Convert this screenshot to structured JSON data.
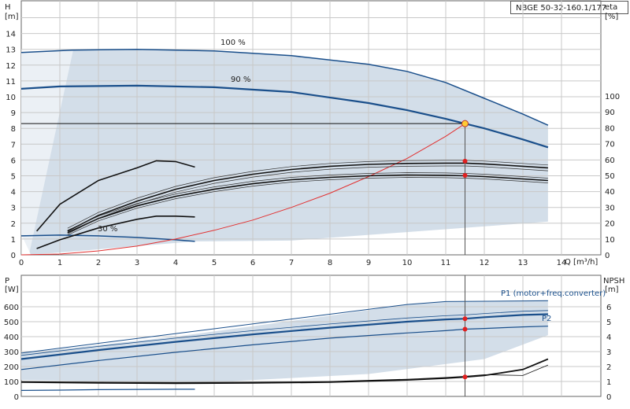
{
  "model": "NBGE 50-32-160.1/177",
  "chart_data": [
    {
      "type": "line",
      "panel": "head-efficiency",
      "x_label": "Q [m³/h]",
      "y_label_left": "H",
      "y_unit_left": "[m]",
      "y_label_right": "eta",
      "y_unit_right": "[%]",
      "xlim": [
        0,
        14
      ],
      "ylim_left": [
        0,
        15
      ],
      "ylim_right": [
        0,
        100
      ],
      "x_ticks": [
        "0",
        "1",
        "2",
        "3",
        "4",
        "5",
        "6",
        "7",
        "8",
        "9",
        "10",
        "11",
        "12",
        "13",
        "14"
      ],
      "y_ticks_left": [
        "0",
        "1",
        "2",
        "3",
        "4",
        "5",
        "6",
        "7",
        "8",
        "9",
        "10",
        "11",
        "12",
        "13",
        "14"
      ],
      "y_ticks_right": [
        "0",
        "10",
        "20",
        "30",
        "40",
        "50",
        "60",
        "70",
        "80",
        "90",
        "100"
      ],
      "operating_point": {
        "q": 11.5,
        "h": 8.3,
        "eta": 59,
        "eta_right": 50
      },
      "series": [
        {
          "name": "100 %",
          "kind": "head",
          "x": [
            0,
            1.3,
            3,
            5,
            7,
            9,
            10,
            11,
            12,
            13,
            13.65
          ],
          "y": [
            12.8,
            12.95,
            13.0,
            12.9,
            12.6,
            12.05,
            11.6,
            10.9,
            9.9,
            8.9,
            8.2
          ]
        },
        {
          "name": "90 %",
          "kind": "head",
          "x": [
            0,
            1,
            3,
            5,
            7,
            9,
            10,
            11,
            11.5,
            12,
            13,
            13.65
          ],
          "y": [
            10.5,
            10.65,
            10.7,
            10.6,
            10.3,
            9.6,
            9.15,
            8.6,
            8.3,
            8.0,
            7.3,
            6.8
          ]
        },
        {
          "name": "30 %",
          "kind": "head",
          "x": [
            0,
            1,
            2,
            3,
            4,
            4.5
          ],
          "y": [
            1.2,
            1.25,
            1.2,
            1.1,
            0.95,
            0.85
          ]
        },
        {
          "name": "",
          "kind": "system",
          "x": [
            0,
            1,
            2,
            3,
            4,
            5,
            6,
            7,
            8,
            9,
            10,
            11,
            11.5
          ],
          "y": [
            0,
            0.05,
            0.25,
            0.55,
            1.0,
            1.55,
            2.2,
            3.0,
            3.9,
            4.95,
            6.1,
            7.5,
            8.3
          ]
        },
        {
          "name": "",
          "kind": "efficiency",
          "x": [
            1.2,
            2,
            3,
            4,
            5,
            6,
            7,
            8,
            9,
            10,
            11,
            11.5,
            12,
            13,
            13.65
          ],
          "y": [
            1.5,
            2.5,
            3.4,
            4.15,
            4.7,
            5.1,
            5.4,
            5.6,
            5.72,
            5.78,
            5.8,
            5.8,
            5.75,
            5.6,
            5.5
          ]
        },
        {
          "name": "",
          "kind": "efficiency",
          "x": [
            1.2,
            2,
            3,
            4,
            5,
            6,
            7,
            8,
            9,
            10,
            11,
            11.5,
            12,
            13,
            13.65
          ],
          "y": [
            1.4,
            2.3,
            3.1,
            3.7,
            4.15,
            4.5,
            4.75,
            4.9,
            5.0,
            5.05,
            5.03,
            5.0,
            4.95,
            4.8,
            4.7
          ]
        },
        {
          "name": "",
          "kind": "efficiency",
          "x": [
            0.4,
            1,
            2,
            3,
            3.5,
            4,
            4.5
          ],
          "y": [
            1.5,
            3.2,
            4.7,
            5.5,
            5.95,
            5.9,
            5.55
          ]
        },
        {
          "name": "",
          "kind": "efficiency",
          "x": [
            0.4,
            1,
            2,
            3,
            3.5,
            4,
            4.5
          ],
          "y": [
            0.4,
            0.95,
            1.7,
            2.25,
            2.45,
            2.45,
            2.4
          ]
        }
      ]
    },
    {
      "type": "line",
      "panel": "power-npsh",
      "y_label_left": "P",
      "y_unit_left": "[W]",
      "y_label_right": "NPSH",
      "y_unit_right": "[m]",
      "xlim": [
        0,
        14
      ],
      "ylim_left": [
        0,
        700
      ],
      "ylim_right": [
        0,
        7
      ],
      "y_ticks_left": [
        "0",
        "100",
        "200",
        "300",
        "400",
        "500",
        "600"
      ],
      "y_ticks_right": [
        "0",
        "1",
        "2",
        "3",
        "4",
        "5",
        "6"
      ],
      "operating_point": {
        "q": 11.5,
        "p1": 520,
        "p2": 450,
        "npsh": 1.3
      },
      "series": [
        {
          "name": "P1 (motor+freq.converter)",
          "kind": "power",
          "x": [
            0,
            2,
            4,
            6,
            8,
            10,
            11,
            11.5,
            12,
            13,
            13.65
          ],
          "y": [
            250,
            310,
            365,
            415,
            460,
            500,
            515,
            520,
            530,
            545,
            550
          ]
        },
        {
          "name": "P2",
          "kind": "power",
          "x": [
            0,
            2,
            4,
            6,
            8,
            10,
            11,
            11.5,
            12,
            13,
            13.65
          ],
          "y": [
            180,
            240,
            295,
            345,
            390,
            425,
            440,
            450,
            455,
            465,
            470
          ]
        },
        {
          "name": "",
          "kind": "power",
          "x": [
            0,
            1,
            2,
            3,
            4,
            4.5
          ],
          "y": [
            40,
            42,
            45,
            47,
            48,
            48
          ]
        },
        {
          "name": "",
          "kind": "npsh",
          "x": [
            0,
            2,
            4,
            6,
            8,
            10,
            11,
            11.5,
            12,
            13,
            13.65
          ],
          "y": [
            0.95,
            0.9,
            0.88,
            0.9,
            0.95,
            1.1,
            1.22,
            1.3,
            1.4,
            1.8,
            2.5
          ]
        }
      ]
    }
  ]
}
